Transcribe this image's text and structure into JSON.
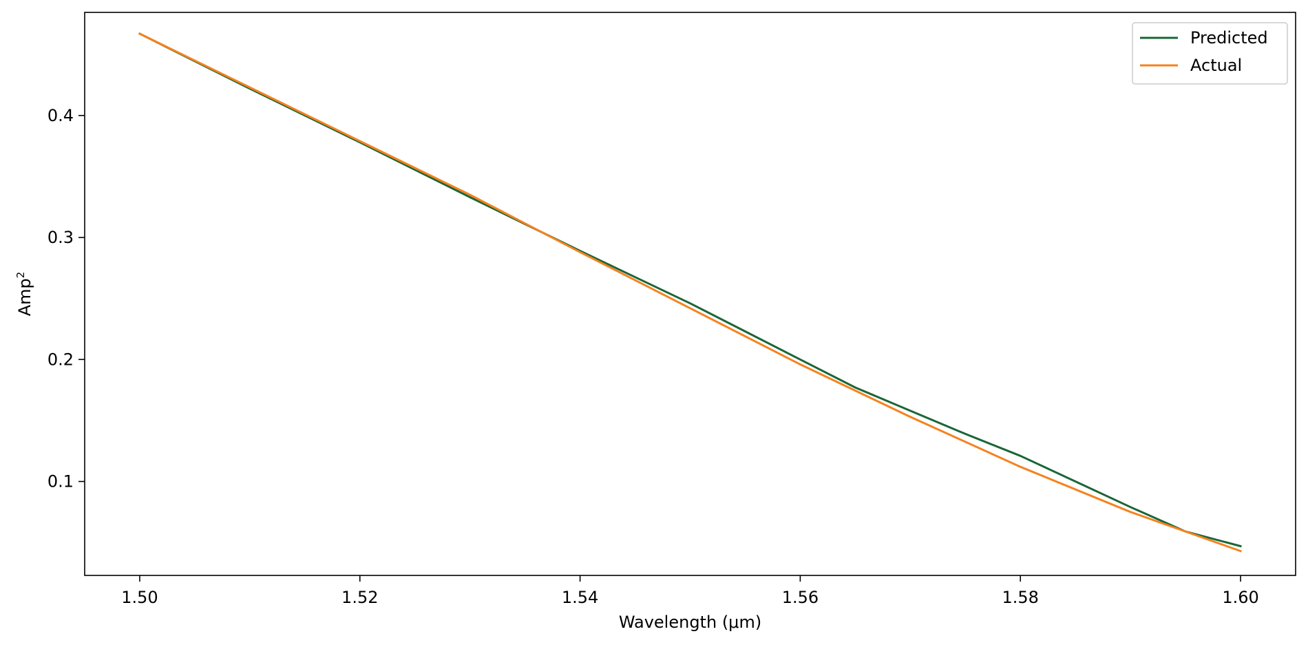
{
  "chart_data": {
    "type": "line",
    "xlabel": "Wavelength (μm)",
    "ylabel_base": "Amp",
    "ylabel_sup": "2",
    "xlim": [
      1.495,
      1.605
    ],
    "ylim": [
      0.023,
      0.4845
    ],
    "xticks": [
      1.5,
      1.52,
      1.54,
      1.56,
      1.58,
      1.6
    ],
    "xtick_labels": [
      "1.50",
      "1.52",
      "1.54",
      "1.56",
      "1.58",
      "1.60"
    ],
    "yticks": [
      0.1,
      0.2,
      0.3,
      0.4
    ],
    "ytick_labels": [
      "0.1",
      "0.2",
      "0.3",
      "0.4"
    ],
    "grid": false,
    "legend_position": "top-right",
    "series": [
      {
        "name": "Predicted",
        "color": "#1a6637",
        "x": [
          1.5,
          1.51,
          1.52,
          1.53,
          1.54,
          1.55,
          1.555,
          1.56,
          1.565,
          1.57,
          1.575,
          1.58,
          1.585,
          1.59,
          1.595,
          1.6
        ],
        "y": [
          0.467,
          0.422,
          0.378,
          0.333,
          0.289,
          0.246,
          0.223,
          0.2,
          0.177,
          0.158,
          0.139,
          0.121,
          0.1,
          0.079,
          0.059,
          0.047
        ]
      },
      {
        "name": "Actual",
        "color": "#f5821f",
        "x": [
          1.5,
          1.51,
          1.52,
          1.53,
          1.54,
          1.55,
          1.56,
          1.57,
          1.58,
          1.59,
          1.6
        ],
        "y": [
          0.467,
          0.423,
          0.379,
          0.335,
          0.288,
          0.242,
          0.196,
          0.153,
          0.112,
          0.075,
          0.043
        ]
      }
    ]
  }
}
